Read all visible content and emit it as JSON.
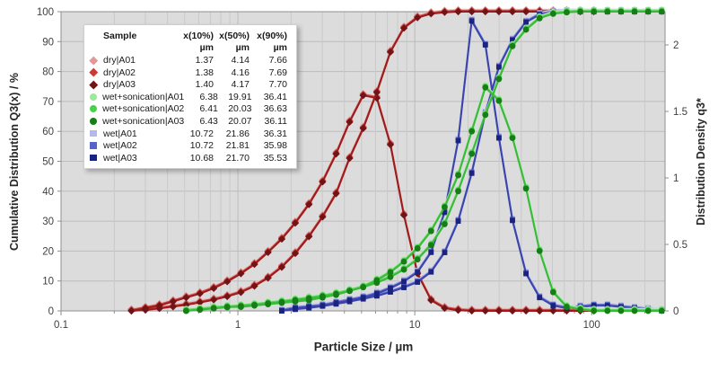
{
  "legend": {
    "headers": [
      "Sample",
      "x(10%)",
      "x(50%)",
      "x(90%)"
    ],
    "units": [
      "µm",
      "µm",
      "µm"
    ],
    "rows": [
      {
        "sample": "dry|A01",
        "x10": "1.37",
        "x50": "4.14",
        "x90": "7.66",
        "swatch": "#e09898",
        "shape": "diamond"
      },
      {
        "sample": "dry|A02",
        "x10": "1.38",
        "x50": "4.16",
        "x90": "7.69",
        "swatch": "#cc3b33",
        "shape": "diamond"
      },
      {
        "sample": "dry|A03",
        "x10": "1.40",
        "x50": "4.17",
        "x90": "7.70",
        "swatch": "#701418",
        "shape": "diamond"
      },
      {
        "sample": "wet+sonication|A01",
        "x10": "6.38",
        "x50": "19.91",
        "x90": "36.41",
        "swatch": "#9ce89c",
        "shape": "circle"
      },
      {
        "sample": "wet+sonication|A02",
        "x10": "6.41",
        "x50": "20.03",
        "x90": "36.63",
        "swatch": "#4ad04a",
        "shape": "circle"
      },
      {
        "sample": "wet+sonication|A03",
        "x10": "6.43",
        "x50": "20.07",
        "x90": "36.11",
        "swatch": "#157f15",
        "shape": "circle"
      },
      {
        "sample": "wet|A01",
        "x10": "10.72",
        "x50": "21.86",
        "x90": "36.31",
        "swatch": "#b4b9e6",
        "shape": "square"
      },
      {
        "sample": "wet|A02",
        "x10": "10.72",
        "x50": "21.81",
        "x90": "35.98",
        "swatch": "#5863c8",
        "shape": "square"
      },
      {
        "sample": "wet|A03",
        "x10": "10.68",
        "x50": "21.70",
        "x90": "35.53",
        "swatch": "#1b2380",
        "shape": "square"
      }
    ]
  },
  "chart_data": {
    "type": "line",
    "xlabel": "Particle Size / µm",
    "ylabel_left": "Cumulative Distribution Q3(x) / %",
    "ylabel_right": "Distribution Density q3*",
    "x_scale": "log",
    "x_range": [
      0.1,
      260
    ],
    "x_ticks": [
      0.1,
      1,
      10,
      100
    ],
    "y_left_range": [
      0,
      100
    ],
    "y_left_ticks": [
      0,
      10,
      20,
      30,
      40,
      50,
      60,
      70,
      80,
      90,
      100
    ],
    "y_right_range": [
      0,
      2.25
    ],
    "y_right_ticks": [
      0,
      0.5,
      1,
      1.5,
      2
    ],
    "grid": true,
    "legend_position": "top-left",
    "colors": {
      "plot_bg": "#dcdcdc",
      "grid_minor": "#c9c9c9",
      "grid_major": "#bcbcbc",
      "axis": "#8f8f8f",
      "tick_text": "#3f3f3f"
    },
    "groups": [
      {
        "id": "dry",
        "marker": "diamond",
        "replicates": [
          {
            "name": "dry|A01",
            "line": "#eec2c2",
            "marker_color": "#e09898",
            "dy": -2.2
          },
          {
            "name": "dry|A02",
            "line": "#c84848",
            "marker_color": "#cc3b33",
            "dy": -1.1
          },
          {
            "name": "dry|A03",
            "line": "#9c1b1b",
            "marker_color": "#701418",
            "dy": 0
          }
        ],
        "sizes": [
          0.25,
          0.3,
          0.36,
          0.43,
          0.51,
          0.61,
          0.73,
          0.87,
          1.04,
          1.24,
          1.48,
          1.77,
          2.11,
          2.52,
          3.01,
          3.59,
          4.28,
          5.11,
          6.1,
          7.28,
          8.68,
          10.36,
          12.36,
          14.75,
          17.6,
          21.0,
          25.06,
          29.9,
          35.67,
          42.56,
          50.78,
          60.59,
          72.29,
          86.25,
          102.9
        ],
        "cumulative": [
          0,
          0.3,
          0.8,
          1.4,
          2.0,
          2.8,
          3.7,
          4.8,
          6.2,
          8.3,
          11.0,
          14.6,
          19.2,
          24.8,
          31.4,
          39.2,
          51.0,
          61.0,
          73.0,
          86.5,
          94.5,
          98.0,
          99.3,
          99.8,
          100,
          100,
          100,
          100,
          100,
          100,
          100,
          100,
          100,
          100,
          100
        ],
        "density": [
          0,
          0.02,
          0.04,
          0.07,
          0.1,
          0.13,
          0.17,
          0.22,
          0.28,
          0.35,
          0.44,
          0.54,
          0.66,
          0.8,
          0.97,
          1.18,
          1.42,
          1.62,
          1.6,
          1.25,
          0.72,
          0.28,
          0.08,
          0.02,
          0.005,
          0,
          0,
          0,
          0,
          0,
          0,
          0,
          0,
          0,
          0
        ]
      },
      {
        "id": "wet",
        "marker": "square",
        "replicates": [
          {
            "name": "wet|A01",
            "line": "#c9cdf0",
            "marker_color": "#b4b9e6",
            "dy": -2.2
          },
          {
            "name": "wet|A02",
            "line": "#6a74d0",
            "marker_color": "#5863c8",
            "dy": -1.1
          },
          {
            "name": "wet|A03",
            "line": "#3a44aa",
            "marker_color": "#1b2380",
            "dy": 0
          }
        ],
        "sizes": [
          1.77,
          2.11,
          2.52,
          3.01,
          3.59,
          4.28,
          5.11,
          6.1,
          7.28,
          8.68,
          10.36,
          12.36,
          14.75,
          17.6,
          21.0,
          25.06,
          29.9,
          35.67,
          42.56,
          50.78,
          60.59,
          72.29,
          86.25,
          102.9,
          122.8,
          146.5,
          174.8,
          208.6,
          248.9
        ],
        "cumulative": [
          0,
          0.5,
          1.0,
          1.6,
          2.3,
          3.1,
          4.0,
          5.0,
          6.3,
          7.8,
          9.6,
          13.0,
          19.5,
          30.0,
          46.0,
          66.0,
          81.5,
          90.5,
          96.5,
          99.0,
          99.8,
          100,
          100,
          100,
          100,
          100,
          100,
          100,
          100
        ],
        "density": [
          0,
          0.02,
          0.03,
          0.04,
          0.06,
          0.08,
          0.1,
          0.13,
          0.17,
          0.22,
          0.29,
          0.44,
          0.74,
          1.28,
          2.18,
          2.0,
          1.3,
          0.68,
          0.28,
          0.1,
          0.04,
          0.02,
          0.03,
          0.04,
          0.04,
          0.03,
          0.02,
          0.01,
          0
        ]
      },
      {
        "id": "wet_sonication",
        "marker": "circle",
        "replicates": [
          {
            "name": "wet+sonication|A01",
            "line": "#bceebc",
            "marker_color": "#9ce89c",
            "dy": -2.2
          },
          {
            "name": "wet+sonication|A02",
            "line": "#66d166",
            "marker_color": "#4ad04a",
            "dy": -1.1
          },
          {
            "name": "wet+sonication|A03",
            "line": "#38bb38",
            "marker_color": "#157f15",
            "dy": 0
          }
        ],
        "sizes": [
          0.51,
          0.61,
          0.73,
          0.87,
          1.04,
          1.24,
          1.48,
          1.77,
          2.11,
          2.52,
          3.01,
          3.59,
          4.28,
          5.11,
          6.1,
          7.28,
          8.68,
          10.36,
          12.36,
          14.75,
          17.6,
          21.0,
          25.06,
          29.9,
          35.67,
          42.56,
          50.78,
          60.59,
          72.29,
          86.25,
          102.9,
          122.8,
          146.5,
          174.8,
          208.6,
          248.9
        ],
        "cumulative": [
          0,
          0.4,
          0.8,
          1.2,
          1.6,
          2.0,
          2.5,
          3.0,
          3.6,
          4.2,
          4.9,
          5.7,
          6.7,
          7.9,
          9.4,
          11.3,
          13.8,
          17.2,
          22.0,
          29.0,
          40.0,
          52.5,
          65.5,
          77.5,
          88.5,
          94.0,
          97.8,
          99.3,
          99.8,
          100,
          100,
          100,
          100,
          100,
          100,
          100
        ],
        "density": [
          0,
          0.01,
          0.02,
          0.03,
          0.03,
          0.04,
          0.05,
          0.06,
          0.07,
          0.08,
          0.1,
          0.12,
          0.15,
          0.18,
          0.23,
          0.29,
          0.37,
          0.47,
          0.6,
          0.78,
          1.02,
          1.35,
          1.68,
          1.58,
          1.3,
          0.92,
          0.45,
          0.14,
          0.03,
          0.01,
          0,
          0,
          0,
          0,
          0,
          0
        ]
      }
    ]
  }
}
